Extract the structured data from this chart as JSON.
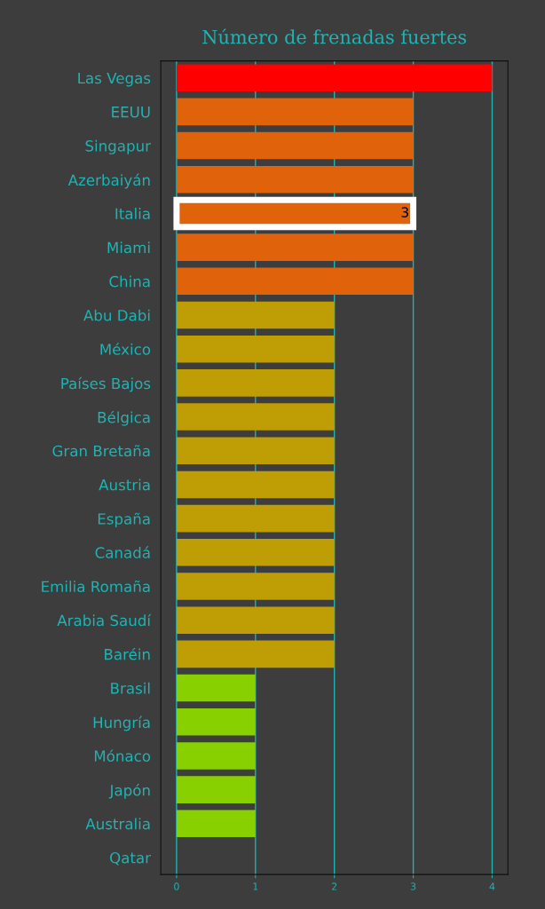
{
  "chart_data": {
    "type": "bar",
    "orientation": "horizontal",
    "title": "Número de frenadas fuertes",
    "categories": [
      "Las Vegas",
      "EEUU",
      "Singapur",
      "Azerbaiyán",
      "Italia",
      "Miami",
      "China",
      "Abu Dabi",
      "México",
      "Países Bajos",
      "Bélgica",
      "Gran Bretaña",
      "Austria",
      "España",
      "Canadá",
      "Emilia Romaña",
      "Arabia Saudí",
      "Baréin",
      "Brasil",
      "Hungría",
      "Mónaco",
      "Japón",
      "Australia",
      "Qatar"
    ],
    "values": [
      4,
      3,
      3,
      3,
      3,
      3,
      3,
      2,
      2,
      2,
      2,
      2,
      2,
      2,
      2,
      2,
      2,
      2,
      1,
      1,
      1,
      1,
      1,
      0
    ],
    "colors": [
      "#ff0000",
      "#e0620a",
      "#e0620a",
      "#e0620a",
      "#e0620a",
      "#e0620a",
      "#e0620a",
      "#bf9e05",
      "#bf9e05",
      "#bf9e05",
      "#bf9e05",
      "#bf9e05",
      "#bf9e05",
      "#bf9e05",
      "#bf9e05",
      "#bf9e05",
      "#bf9e05",
      "#bf9e05",
      "#88d000",
      "#88d000",
      "#88d000",
      "#88d000",
      "#88d000",
      "#88d000"
    ],
    "value_labels": [
      null,
      null,
      null,
      null,
      "3",
      null,
      null,
      null,
      null,
      null,
      null,
      null,
      null,
      null,
      null,
      null,
      null,
      null,
      null,
      null,
      null,
      null,
      null,
      null
    ],
    "xlim": [
      -0.2,
      4.2
    ],
    "xticks": [
      0,
      1,
      2,
      3,
      4
    ],
    "grid": "x",
    "legend": false
  }
}
